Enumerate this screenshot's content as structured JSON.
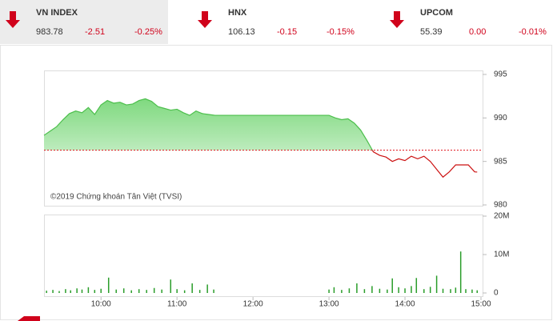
{
  "indices": [
    {
      "name": "VN INDEX",
      "value": "983.78",
      "change": "-2.51",
      "percent": "-0.25%"
    },
    {
      "name": "HNX",
      "value": "106.13",
      "change": "-0.15",
      "percent": "-0.15%"
    },
    {
      "name": "UPCOM",
      "value": "55.39",
      "change": "0.00",
      "percent": "-0.01%"
    }
  ],
  "chart_data": [
    {
      "type": "line",
      "annotation": "©2019 Chứng khoán Tân Việt (TVSI)",
      "x": [
        "09:15",
        "09:20",
        "09:25",
        "09:30",
        "09:35",
        "09:40",
        "09:45",
        "09:50",
        "09:55",
        "10:00",
        "10:05",
        "10:10",
        "10:15",
        "10:20",
        "10:25",
        "10:30",
        "10:35",
        "10:40",
        "10:45",
        "10:50",
        "10:55",
        "11:00",
        "11:05",
        "11:10",
        "11:15",
        "11:20",
        "11:25",
        "11:30",
        "13:00",
        "13:05",
        "13:10",
        "13:15",
        "13:20",
        "13:25",
        "13:30",
        "13:35",
        "13:40",
        "13:45",
        "13:50",
        "13:55",
        "14:00",
        "14:05",
        "14:10",
        "14:15",
        "14:20",
        "14:25",
        "14:30",
        "14:35",
        "14:40",
        "14:45",
        "14:50",
        "14:55",
        "14:57"
      ],
      "values": [
        988.0,
        988.5,
        989.0,
        989.8,
        990.5,
        990.8,
        990.6,
        991.2,
        990.4,
        991.5,
        992.0,
        991.7,
        991.8,
        991.5,
        991.6,
        992.0,
        992.2,
        991.9,
        991.3,
        991.1,
        990.9,
        991.0,
        990.6,
        990.3,
        990.8,
        990.5,
        990.4,
        990.3,
        990.3,
        990.0,
        989.8,
        989.9,
        989.4,
        988.6,
        987.4,
        986.1,
        985.7,
        985.5,
        985.0,
        985.3,
        985.1,
        985.6,
        985.3,
        985.6,
        985.0,
        984.1,
        983.2,
        983.8,
        984.6,
        984.6,
        984.6,
        983.8,
        983.78
      ],
      "reference": 986.29,
      "reference_color": "#e0101a",
      "color_above": "#4cbf4c",
      "color_below": "#cc1010",
      "xlim": [
        "09:15",
        "15:00"
      ],
      "ylim": [
        980,
        995
      ],
      "yticks": [
        980,
        985,
        990,
        995
      ]
    },
    {
      "type": "bar",
      "color": "#2a9d2a",
      "x": [
        "09:17",
        "09:22",
        "09:27",
        "09:32",
        "09:36",
        "09:41",
        "09:45",
        "09:50",
        "09:55",
        "10:00",
        "10:06",
        "10:12",
        "10:18",
        "10:24",
        "10:30",
        "10:36",
        "10:42",
        "10:48",
        "10:55",
        "11:00",
        "11:06",
        "11:12",
        "11:18",
        "11:24",
        "11:29",
        "13:00",
        "13:04",
        "13:10",
        "13:16",
        "13:22",
        "13:28",
        "13:34",
        "13:40",
        "13:46",
        "13:50",
        "13:55",
        "14:00",
        "14:05",
        "14:09",
        "14:15",
        "14:20",
        "14:25",
        "14:30",
        "14:36",
        "14:40",
        "14:44",
        "14:48",
        "14:53",
        "14:57"
      ],
      "values": [
        600000,
        800000,
        500000,
        1000000,
        700000,
        1200000,
        900000,
        1500000,
        800000,
        1100000,
        4000000,
        900000,
        1200000,
        700000,
        1000000,
        800000,
        1300000,
        900000,
        3500000,
        1000000,
        700000,
        2500000,
        800000,
        2200000,
        900000,
        900000,
        1500000,
        800000,
        1200000,
        2500000,
        1000000,
        1800000,
        1100000,
        900000,
        3800000,
        1500000,
        1200000,
        1800000,
        3900000,
        1000000,
        1600000,
        4500000,
        1100000,
        1000000,
        1400000,
        10800000,
        1000000,
        900000,
        700000
      ],
      "xlim": [
        "09:15",
        "15:00"
      ],
      "xticks": [
        "10:00",
        "11:00",
        "12:00",
        "13:00",
        "14:00",
        "15:00"
      ],
      "ylim": [
        0,
        20000000
      ],
      "yticks": [
        0,
        {
          "value": 10000000,
          "label": "10M"
        },
        {
          "value": 20000000,
          "label": "20M"
        }
      ]
    }
  ]
}
